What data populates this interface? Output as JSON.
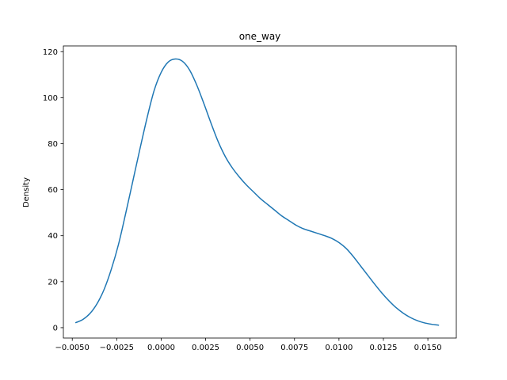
{
  "chart_data": {
    "type": "line",
    "title": "one_way",
    "xlabel": "",
    "ylabel": "Density",
    "xlim": [
      -0.0055,
      0.0166
    ],
    "ylim": [
      -4.5,
      122.5
    ],
    "grid": false,
    "x_ticks": [
      -0.005,
      -0.0025,
      0.0,
      0.0025,
      0.005,
      0.0075,
      0.01,
      0.0125,
      0.015
    ],
    "x_tick_labels": [
      "−0.0050",
      "−0.0025",
      "0.0000",
      "0.0025",
      "0.0050",
      "0.0075",
      "0.0100",
      "0.0125",
      "0.0150"
    ],
    "y_ticks": [
      0,
      20,
      40,
      60,
      80,
      100,
      120
    ],
    "y_tick_labels": [
      "0",
      "20",
      "40",
      "60",
      "80",
      "100",
      "120"
    ],
    "series": [
      {
        "color": "#1f77b4",
        "x": [
          -0.0048,
          -0.0044,
          -0.004,
          -0.0036,
          -0.0032,
          -0.0028,
          -0.0024,
          -0.002,
          -0.0016,
          -0.0012,
          -0.0008,
          -0.0004,
          0.0,
          0.0004,
          0.0008,
          0.0012,
          0.0016,
          0.002,
          0.0024,
          0.0028,
          0.0032,
          0.0036,
          0.004,
          0.0044,
          0.0048,
          0.0052,
          0.0056,
          0.006,
          0.0064,
          0.0068,
          0.0072,
          0.0076,
          0.008,
          0.0084,
          0.0088,
          0.0092,
          0.0096,
          0.01,
          0.0104,
          0.0108,
          0.0112,
          0.0116,
          0.012,
          0.0124,
          0.0128,
          0.0132,
          0.0136,
          0.014,
          0.0144,
          0.0148,
          0.0152,
          0.0156
        ],
        "y": [
          2.2,
          3.6,
          6.2,
          10.5,
          16.8,
          25.5,
          36.2,
          49.5,
          63.5,
          77.5,
          91.0,
          103.0,
          111.0,
          115.5,
          116.8,
          115.8,
          112.0,
          105.5,
          97.5,
          89.0,
          81.0,
          74.5,
          69.5,
          65.5,
          62.0,
          59.0,
          56.0,
          53.5,
          51.0,
          48.5,
          46.5,
          44.5,
          43.0,
          42.0,
          41.0,
          40.0,
          38.8,
          37.0,
          34.5,
          31.0,
          27.0,
          23.0,
          19.0,
          15.2,
          11.8,
          8.8,
          6.4,
          4.5,
          3.1,
          2.1,
          1.5,
          1.1
        ]
      }
    ]
  }
}
